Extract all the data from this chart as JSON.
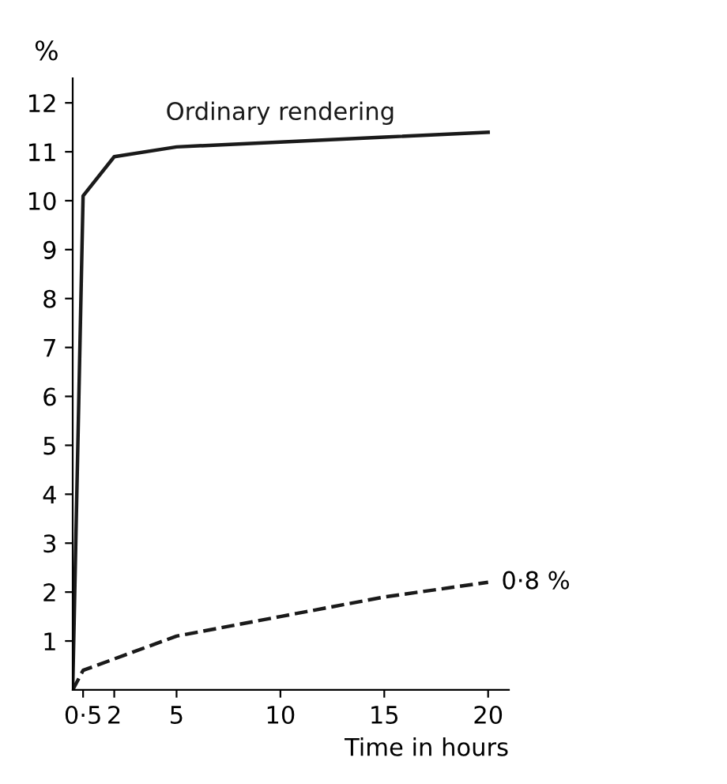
{
  "chart_data": {
    "type": "line",
    "ylabel": "%",
    "xlabel": "Time in hours",
    "xlim": [
      0,
      21
    ],
    "ylim": [
      0,
      12.5
    ],
    "xticks": [
      {
        "value": 0.5,
        "label": "0·5"
      },
      2,
      5,
      10,
      15,
      20
    ],
    "yticks": [
      1,
      2,
      3,
      4,
      5,
      6,
      7,
      8,
      9,
      10,
      11,
      12
    ],
    "series": [
      {
        "name": "Ordinary rendering",
        "color": "#1a1a1a",
        "line_style": "solid",
        "x": [
          0,
          0.5,
          2,
          5,
          10,
          15,
          20
        ],
        "values": [
          0,
          10.1,
          10.9,
          11.1,
          11.2,
          11.3,
          11.4
        ]
      },
      {
        "color": "#1a1a1a",
        "line_style": "dashed",
        "x": [
          0,
          0.5,
          5,
          10,
          15,
          20
        ],
        "values": [
          0,
          0.4,
          1.1,
          1.5,
          1.9,
          2.2
        ]
      }
    ],
    "annotations": [
      {
        "text": "0·8 %",
        "x": 20,
        "y": 2.2
      }
    ],
    "grid": false,
    "legend": false,
    "marker": "none"
  }
}
